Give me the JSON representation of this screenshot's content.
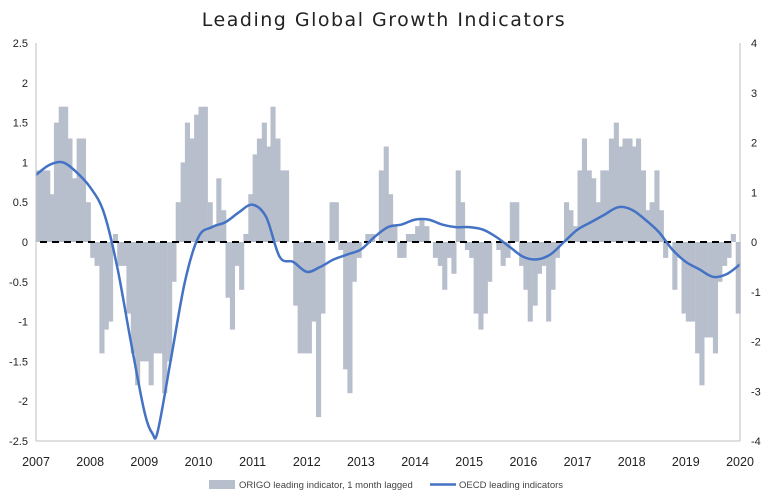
{
  "chart_data": {
    "type": "area",
    "title": "Leading Global Growth Indicators",
    "xlabel": "",
    "ylabel": "",
    "x_ticks": [
      "2007",
      "2008",
      "2009",
      "2010",
      "2011",
      "2012",
      "2013",
      "2014",
      "2015",
      "2016",
      "2017",
      "2018",
      "2019",
      "2020"
    ],
    "xlim": [
      2007,
      2020
    ],
    "ylim_left": [
      -2.5,
      2.5
    ],
    "ylim_right": [
      -4,
      4
    ],
    "y_ticks_left": [
      "2.5",
      "2",
      "1.5",
      "1",
      "0.5",
      "0",
      "-0.5",
      "-1",
      "-1.5",
      "-2",
      "-2.5"
    ],
    "y_ticks_right": [
      "4",
      "3",
      "2",
      "1",
      "0",
      "-1",
      "-2",
      "-3",
      "-4"
    ],
    "zero_line": "dashed",
    "grid": false,
    "legend_position": "bottom",
    "colors": {
      "origo": "#b8bfcc",
      "oecd": "#4472c4",
      "zero": "#000000"
    },
    "series": [
      {
        "name": "ORIGO leading indicator, 1 month lagged",
        "axis": "left",
        "style": "area",
        "x": [
          2007.0,
          2007.08,
          2007.17,
          2007.25,
          2007.33,
          2007.42,
          2007.5,
          2007.58,
          2007.67,
          2007.75,
          2007.83,
          2007.92,
          2008.0,
          2008.08,
          2008.17,
          2008.25,
          2008.33,
          2008.42,
          2008.5,
          2008.58,
          2008.67,
          2008.75,
          2008.83,
          2008.92,
          2009.0,
          2009.08,
          2009.17,
          2009.25,
          2009.33,
          2009.42,
          2009.5,
          2009.58,
          2009.67,
          2009.75,
          2009.83,
          2009.92,
          2010.0,
          2010.08,
          2010.17,
          2010.25,
          2010.33,
          2010.42,
          2010.5,
          2010.58,
          2010.67,
          2010.75,
          2010.83,
          2010.92,
          2011.0,
          2011.08,
          2011.17,
          2011.25,
          2011.33,
          2011.42,
          2011.5,
          2011.58,
          2011.67,
          2011.75,
          2011.83,
          2011.92,
          2012.0,
          2012.08,
          2012.17,
          2012.25,
          2012.33,
          2012.42,
          2012.5,
          2012.58,
          2012.67,
          2012.75,
          2012.83,
          2012.92,
          2013.0,
          2013.08,
          2013.17,
          2013.25,
          2013.33,
          2013.42,
          2013.5,
          2013.58,
          2013.67,
          2013.75,
          2013.83,
          2013.92,
          2014.0,
          2014.08,
          2014.17,
          2014.25,
          2014.33,
          2014.42,
          2014.5,
          2014.58,
          2014.67,
          2014.75,
          2014.83,
          2014.92,
          2015.0,
          2015.08,
          2015.17,
          2015.25,
          2015.33,
          2015.42,
          2015.5,
          2015.58,
          2015.67,
          2015.75,
          2015.83,
          2015.92,
          2016.0,
          2016.08,
          2016.17,
          2016.25,
          2016.33,
          2016.42,
          2016.5,
          2016.58,
          2016.67,
          2016.75,
          2016.83,
          2016.92,
          2017.0,
          2017.08,
          2017.17,
          2017.25,
          2017.33,
          2017.42,
          2017.5,
          2017.58,
          2017.67,
          2017.75,
          2017.83,
          2017.92,
          2018.0,
          2018.08,
          2018.17,
          2018.25,
          2018.33,
          2018.42,
          2018.5,
          2018.58,
          2018.67,
          2018.75,
          2018.83,
          2018.92,
          2019.0,
          2019.08,
          2019.17,
          2019.25,
          2019.33,
          2019.42,
          2019.5,
          2019.58,
          2019.67,
          2019.75,
          2019.83,
          2019.92
        ],
        "values": [
          0.9,
          0.9,
          0.9,
          0.6,
          1.5,
          1.7,
          1.7,
          1.3,
          0.8,
          1.3,
          1.3,
          0.5,
          -0.2,
          -0.3,
          -1.4,
          -1.1,
          -1.0,
          0.1,
          -0.3,
          -0.3,
          -0.9,
          -1.4,
          -1.8,
          -1.5,
          -1.5,
          -1.8,
          -1.4,
          -1.4,
          -1.9,
          -1.5,
          -0.5,
          0.5,
          1.0,
          1.5,
          1.3,
          1.6,
          1.7,
          1.7,
          0.5,
          0.2,
          0.8,
          0.4,
          -0.7,
          -1.1,
          -0.3,
          -0.6,
          0.1,
          0.6,
          1.1,
          1.3,
          1.5,
          1.2,
          1.7,
          1.3,
          0.9,
          0.9,
          0.0,
          -0.8,
          -1.4,
          -1.4,
          -1.4,
          -1.0,
          -2.2,
          -0.9,
          0.0,
          0.5,
          0.5,
          -0.1,
          -1.6,
          -1.9,
          -0.5,
          -0.2,
          0.0,
          0.1,
          0.1,
          0.0,
          0.9,
          1.2,
          0.6,
          0.2,
          -0.2,
          -0.2,
          0.1,
          0.1,
          0.2,
          0.3,
          0.2,
          0.0,
          -0.2,
          -0.3,
          -0.6,
          -0.2,
          -0.4,
          0.9,
          0.5,
          -0.1,
          -0.2,
          -0.9,
          -1.1,
          -0.9,
          -0.5,
          0.0,
          -0.1,
          -0.3,
          -0.2,
          0.5,
          0.5,
          -0.3,
          -0.6,
          -1.0,
          -0.8,
          -0.4,
          -0.3,
          -1.0,
          -0.6,
          -0.2,
          0.0,
          0.5,
          0.4,
          0.2,
          0.9,
          1.3,
          0.9,
          0.8,
          0.5,
          0.9,
          0.9,
          1.3,
          1.5,
          1.2,
          1.3,
          1.3,
          1.2,
          1.3,
          0.9,
          0.4,
          0.5,
          0.9,
          0.4,
          -0.2,
          0.0,
          -0.6,
          -0.2,
          -0.9,
          -1.0,
          -1.0,
          -1.4,
          -1.8,
          -1.2,
          -1.2,
          -1.4,
          -0.5,
          -0.3,
          -0.2,
          0.1,
          -0.9
        ]
      },
      {
        "name": "OECD leading indicators",
        "axis": "right",
        "style": "line",
        "x": [
          2007.0,
          2007.25,
          2007.5,
          2007.75,
          2008.0,
          2008.25,
          2008.5,
          2008.75,
          2009.0,
          2009.15,
          2009.25,
          2009.5,
          2009.75,
          2010.0,
          2010.25,
          2010.5,
          2010.75,
          2011.0,
          2011.25,
          2011.5,
          2011.75,
          2012.0,
          2012.25,
          2012.5,
          2012.75,
          2013.0,
          2013.25,
          2013.5,
          2013.75,
          2014.0,
          2014.25,
          2014.5,
          2014.75,
          2015.0,
          2015.25,
          2015.5,
          2015.75,
          2016.0,
          2016.25,
          2016.5,
          2016.75,
          2017.0,
          2017.25,
          2017.5,
          2017.75,
          2018.0,
          2018.25,
          2018.5,
          2018.75,
          2019.0,
          2019.25,
          2019.5,
          2019.75,
          2020.0
        ],
        "values": [
          1.35,
          1.55,
          1.6,
          1.4,
          1.1,
          0.6,
          -0.5,
          -2.0,
          -3.4,
          -3.85,
          -3.8,
          -2.3,
          -0.8,
          0.1,
          0.3,
          0.4,
          0.6,
          0.75,
          0.5,
          -0.3,
          -0.4,
          -0.6,
          -0.5,
          -0.35,
          -0.25,
          -0.15,
          0.1,
          0.3,
          0.35,
          0.45,
          0.45,
          0.35,
          0.3,
          0.3,
          0.25,
          0.1,
          -0.1,
          -0.3,
          -0.35,
          -0.25,
          0.0,
          0.25,
          0.4,
          0.55,
          0.7,
          0.65,
          0.45,
          0.2,
          -0.15,
          -0.4,
          -0.55,
          -0.7,
          -0.65,
          -0.45
        ]
      }
    ]
  }
}
